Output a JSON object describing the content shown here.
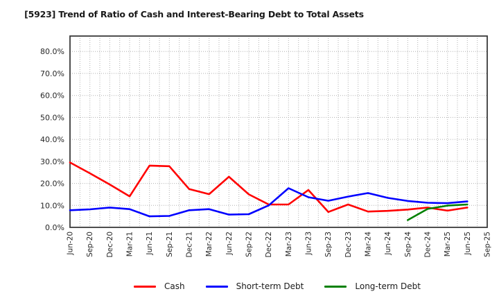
{
  "window": {
    "title": "[5923]  Trend of Ratio of Cash and Interest-Bearing Debt to Total Assets"
  },
  "chart_data": {
    "type": "line",
    "title": "[5923]  Trend of Ratio of Cash and Interest-Bearing Debt to Total Assets",
    "categories": [
      "Jun-20",
      "Sep-20",
      "Dec-20",
      "Mar-21",
      "Jun-21",
      "Sep-21",
      "Dec-21",
      "Mar-22",
      "Jun-22",
      "Sep-22",
      "Dec-22",
      "Mar-23",
      "Jun-23",
      "Sep-23",
      "Dec-23",
      "Mar-24",
      "Jun-24",
      "Sep-24",
      "Dec-24",
      "Mar-25",
      "Jun-25",
      "Sep-25"
    ],
    "series": [
      {
        "name": "Cash",
        "color": "#ff0000",
        "values": [
          29.5,
          24.6,
          19.5,
          14.1,
          28.1,
          27.8,
          17.4,
          15.1,
          23.0,
          15.0,
          10.4,
          10.4,
          17.0,
          7.0,
          10.4,
          7.2,
          7.5,
          8.1,
          9.0,
          7.6,
          9.0,
          null
        ]
      },
      {
        "name": "Short-term Debt",
        "color": "#0000ff",
        "values": [
          7.8,
          8.2,
          9.0,
          8.3,
          5.0,
          5.2,
          7.8,
          8.3,
          5.8,
          6.0,
          10.0,
          17.8,
          13.7,
          12.1,
          14.0,
          15.6,
          13.4,
          12.0,
          11.2,
          11.0,
          11.8,
          null
        ]
      },
      {
        "name": "Long-term Debt",
        "color": "#008000",
        "values": [
          null,
          null,
          null,
          null,
          null,
          null,
          null,
          null,
          null,
          null,
          null,
          null,
          null,
          null,
          null,
          null,
          null,
          3.3,
          8.4,
          9.9,
          10.4,
          null
        ]
      }
    ],
    "xlabel": "",
    "ylabel": "",
    "ylim": [
      0,
      87
    ],
    "ytick_step": 10,
    "ytick_labels": [
      "0.0%",
      "10.0%",
      "20.0%",
      "30.0%",
      "40.0%",
      "50.0%",
      "60.0%",
      "70.0%",
      "80.0%"
    ],
    "grid": true,
    "legend_position": "bottom"
  }
}
